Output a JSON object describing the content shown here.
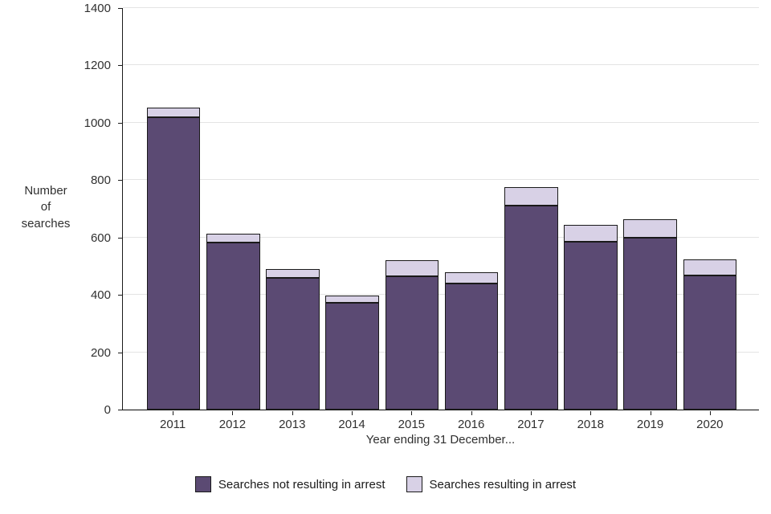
{
  "chart_data": {
    "type": "bar",
    "stacked": true,
    "title": "",
    "xlabel": "Year ending 31 December...",
    "ylabel": "Number of searches",
    "categories": [
      "2011",
      "2012",
      "2013",
      "2014",
      "2015",
      "2016",
      "2017",
      "2018",
      "2019",
      "2020"
    ],
    "series": [
      {
        "name": "Searches not resulting in arrest",
        "color": "#5b4a73",
        "values": [
          1020,
          582,
          458,
          372,
          465,
          440,
          712,
          585,
          600,
          467
        ]
      },
      {
        "name": "Searches resulting in arrest",
        "color": "#d8d1e6",
        "values": [
          32,
          32,
          33,
          25,
          57,
          40,
          63,
          58,
          63,
          58
        ]
      }
    ],
    "totals": [
      1052,
      614,
      491,
      397,
      522,
      480,
      775,
      643,
      663,
      525
    ],
    "ylim": [
      0,
      1400
    ],
    "yticks": [
      0,
      200,
      400,
      600,
      800,
      1000,
      1200,
      1400
    ],
    "grid": "horizontal",
    "legend_position": "bottom",
    "bar_border_color": "#1a1a1a",
    "gridline_color": "#e4e4e4",
    "axis_color": "#1a1a1a"
  }
}
